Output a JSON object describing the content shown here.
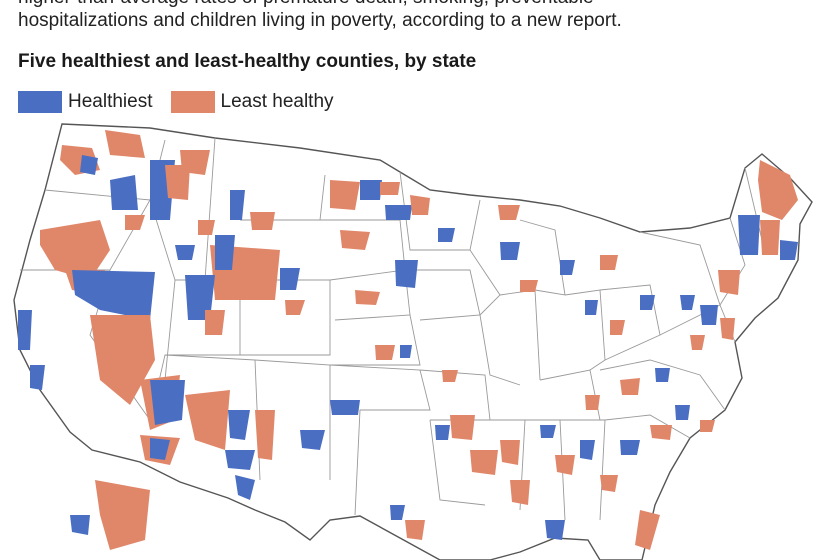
{
  "intro_lines": [
    "higher-than-average rates of premature death, smoking, preventable",
    "hospitalizations and children living in poverty, according to a new report."
  ],
  "subtitle": "Five healthiest and least-healthy counties, by state",
  "legend": {
    "healthiest": {
      "label": "Healthiest",
      "color": "#4a6fc2"
    },
    "least": {
      "label": "Least healthy",
      "color": "#e0876a"
    }
  },
  "map_style": {
    "land": "#ffffff",
    "border": "#9a9a9a",
    "state_border": "#555555"
  }
}
